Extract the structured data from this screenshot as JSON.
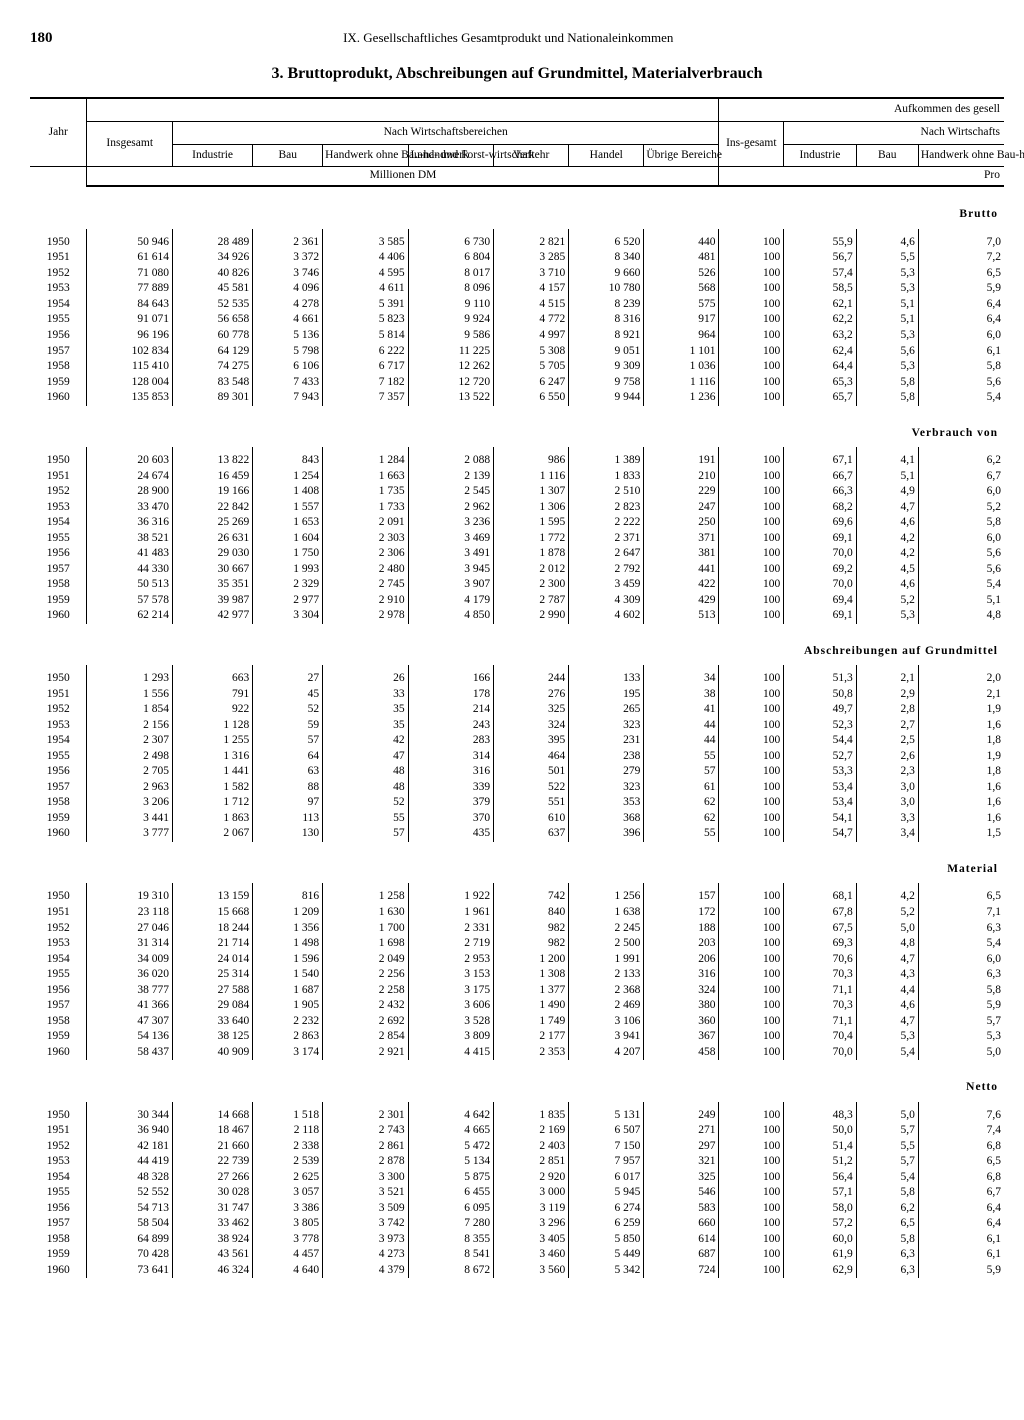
{
  "page_number": "180",
  "chapter": "IX. Gesellschaftliches Gesamtprodukt und Nationaleinkommen",
  "title": "3. Bruttoprodukt, Abschreibungen auf Grundmittel, Materialverbrauch",
  "top_header": "Aufkommen des gesell",
  "mid_header1": "Nach Wirtschaftsbereichen",
  "mid_header2": "Nach Wirtschafts",
  "cols": {
    "jahr": "Jahr",
    "insgesamt": "Insgesamt",
    "industrie": "Industrie",
    "bau": "Bau",
    "handwerk": "Handwerk ohne Bau-handwerk",
    "land": "Land- und Forst-wirtschaft",
    "verkehr": "Verkehr",
    "handel": "Handel",
    "uebrige": "Übrige Bereiche",
    "insgesamt2": "Ins-gesamt",
    "industrie2": "Industrie",
    "bau2": "Bau",
    "handwerk2": "Handwerk ohne Bau-handwerk"
  },
  "unit1": "Millionen DM",
  "unit2": "Pro",
  "sections": [
    {
      "label": "Brutto",
      "rows": [
        [
          "1950",
          "50 946",
          "28 489",
          "2 361",
          "3 585",
          "6 730",
          "2 821",
          "6 520",
          "440",
          "100",
          "55,9",
          "4,6",
          "7,0"
        ],
        [
          "1951",
          "61 614",
          "34 926",
          "3 372",
          "4 406",
          "6 804",
          "3 285",
          "8 340",
          "481",
          "100",
          "56,7",
          "5,5",
          "7,2"
        ],
        [
          "1952",
          "71 080",
          "40 826",
          "3 746",
          "4 595",
          "8 017",
          "3 710",
          "9 660",
          "526",
          "100",
          "57,4",
          "5,3",
          "6,5"
        ],
        [
          "1953",
          "77 889",
          "45 581",
          "4 096",
          "4 611",
          "8 096",
          "4 157",
          "10 780",
          "568",
          "100",
          "58,5",
          "5,3",
          "5,9"
        ],
        [
          "1954",
          "84 643",
          "52 535",
          "4 278",
          "5 391",
          "9 110",
          "4 515",
          "8 239",
          "575",
          "100",
          "62,1",
          "5,1",
          "6,4"
        ],
        [
          "1955",
          "91 071",
          "56 658",
          "4 661",
          "5 823",
          "9 924",
          "4 772",
          "8 316",
          "917",
          "100",
          "62,2",
          "5,1",
          "6,4"
        ],
        [
          "1956",
          "96 196",
          "60 778",
          "5 136",
          "5 814",
          "9 586",
          "4 997",
          "8 921",
          "964",
          "100",
          "63,2",
          "5,3",
          "6,0"
        ],
        [
          "1957",
          "102 834",
          "64 129",
          "5 798",
          "6 222",
          "11 225",
          "5 308",
          "9 051",
          "1 101",
          "100",
          "62,4",
          "5,6",
          "6,1"
        ],
        [
          "1958",
          "115 410",
          "74 275",
          "6 106",
          "6 717",
          "12 262",
          "5 705",
          "9 309",
          "1 036",
          "100",
          "64,4",
          "5,3",
          "5,8"
        ],
        [
          "1959",
          "128 004",
          "83 548",
          "7 433",
          "7 182",
          "12 720",
          "6 247",
          "9 758",
          "1 116",
          "100",
          "65,3",
          "5,8",
          "5,6"
        ],
        [
          "1960",
          "135 853",
          "89 301",
          "7 943",
          "7 357",
          "13 522",
          "6 550",
          "9 944",
          "1 236",
          "100",
          "65,7",
          "5,8",
          "5,4"
        ]
      ]
    },
    {
      "label": "Verbrauch von",
      "rows": [
        [
          "1950",
          "20 603",
          "13 822",
          "843",
          "1 284",
          "2 088",
          "986",
          "1 389",
          "191",
          "100",
          "67,1",
          "4,1",
          "6,2"
        ],
        [
          "1951",
          "24 674",
          "16 459",
          "1 254",
          "1 663",
          "2 139",
          "1 116",
          "1 833",
          "210",
          "100",
          "66,7",
          "5,1",
          "6,7"
        ],
        [
          "1952",
          "28 900",
          "19 166",
          "1 408",
          "1 735",
          "2 545",
          "1 307",
          "2 510",
          "229",
          "100",
          "66,3",
          "4,9",
          "6,0"
        ],
        [
          "1953",
          "33 470",
          "22 842",
          "1 557",
          "1 733",
          "2 962",
          "1 306",
          "2 823",
          "247",
          "100",
          "68,2",
          "4,7",
          "5,2"
        ],
        [
          "1954",
          "36 316",
          "25 269",
          "1 653",
          "2 091",
          "3 236",
          "1 595",
          "2 222",
          "250",
          "100",
          "69,6",
          "4,6",
          "5,8"
        ],
        [
          "1955",
          "38 521",
          "26 631",
          "1 604",
          "2 303",
          "3 469",
          "1 772",
          "2 371",
          "371",
          "100",
          "69,1",
          "4,2",
          "6,0"
        ],
        [
          "1956",
          "41 483",
          "29 030",
          "1 750",
          "2 306",
          "3 491",
          "1 878",
          "2 647",
          "381",
          "100",
          "70,0",
          "4,2",
          "5,6"
        ],
        [
          "1957",
          "44 330",
          "30 667",
          "1 993",
          "2 480",
          "3 945",
          "2 012",
          "2 792",
          "441",
          "100",
          "69,2",
          "4,5",
          "5,6"
        ],
        [
          "1958",
          "50 513",
          "35 351",
          "2 329",
          "2 745",
          "3 907",
          "2 300",
          "3 459",
          "422",
          "100",
          "70,0",
          "4,6",
          "5,4"
        ],
        [
          "1959",
          "57 578",
          "39 987",
          "2 977",
          "2 910",
          "4 179",
          "2 787",
          "4 309",
          "429",
          "100",
          "69,4",
          "5,2",
          "5,1"
        ],
        [
          "1960",
          "62 214",
          "42 977",
          "3 304",
          "2 978",
          "4 850",
          "2 990",
          "4 602",
          "513",
          "100",
          "69,1",
          "5,3",
          "4,8"
        ]
      ]
    },
    {
      "label": "Abschreibungen auf Grundmittel",
      "rows": [
        [
          "1950",
          "1 293",
          "663",
          "27",
          "26",
          "166",
          "244",
          "133",
          "34",
          "100",
          "51,3",
          "2,1",
          "2,0"
        ],
        [
          "1951",
          "1 556",
          "791",
          "45",
          "33",
          "178",
          "276",
          "195",
          "38",
          "100",
          "50,8",
          "2,9",
          "2,1"
        ],
        [
          "1952",
          "1 854",
          "922",
          "52",
          "35",
          "214",
          "325",
          "265",
          "41",
          "100",
          "49,7",
          "2,8",
          "1,9"
        ],
        [
          "1953",
          "2 156",
          "1 128",
          "59",
          "35",
          "243",
          "324",
          "323",
          "44",
          "100",
          "52,3",
          "2,7",
          "1,6"
        ],
        [
          "1954",
          "2 307",
          "1 255",
          "57",
          "42",
          "283",
          "395",
          "231",
          "44",
          "100",
          "54,4",
          "2,5",
          "1,8"
        ],
        [
          "1955",
          "2 498",
          "1 316",
          "64",
          "47",
          "314",
          "464",
          "238",
          "55",
          "100",
          "52,7",
          "2,6",
          "1,9"
        ],
        [
          "1956",
          "2 705",
          "1 441",
          "63",
          "48",
          "316",
          "501",
          "279",
          "57",
          "100",
          "53,3",
          "2,3",
          "1,8"
        ],
        [
          "1957",
          "2 963",
          "1 582",
          "88",
          "48",
          "339",
          "522",
          "323",
          "61",
          "100",
          "53,4",
          "3,0",
          "1,6"
        ],
        [
          "1958",
          "3 206",
          "1 712",
          "97",
          "52",
          "379",
          "551",
          "353",
          "62",
          "100",
          "53,4",
          "3,0",
          "1,6"
        ],
        [
          "1959",
          "3 441",
          "1 863",
          "113",
          "55",
          "370",
          "610",
          "368",
          "62",
          "100",
          "54,1",
          "3,3",
          "1,6"
        ],
        [
          "1960",
          "3 777",
          "2 067",
          "130",
          "57",
          "435",
          "637",
          "396",
          "55",
          "100",
          "54,7",
          "3,4",
          "1,5"
        ]
      ]
    },
    {
      "label": "Material",
      "rows": [
        [
          "1950",
          "19 310",
          "13 159",
          "816",
          "1 258",
          "1 922",
          "742",
          "1 256",
          "157",
          "100",
          "68,1",
          "4,2",
          "6,5"
        ],
        [
          "1951",
          "23 118",
          "15 668",
          "1 209",
          "1 630",
          "1 961",
          "840",
          "1 638",
          "172",
          "100",
          "67,8",
          "5,2",
          "7,1"
        ],
        [
          "1952",
          "27 046",
          "18 244",
          "1 356",
          "1 700",
          "2 331",
          "982",
          "2 245",
          "188",
          "100",
          "67,5",
          "5,0",
          "6,3"
        ],
        [
          "1953",
          "31 314",
          "21 714",
          "1 498",
          "1 698",
          "2 719",
          "982",
          "2 500",
          "203",
          "100",
          "69,3",
          "4,8",
          "5,4"
        ],
        [
          "1954",
          "34 009",
          "24 014",
          "1 596",
          "2 049",
          "2 953",
          "1 200",
          "1 991",
          "206",
          "100",
          "70,6",
          "4,7",
          "6,0"
        ],
        [
          "1955",
          "36 020",
          "25 314",
          "1 540",
          "2 256",
          "3 153",
          "1 308",
          "2 133",
          "316",
          "100",
          "70,3",
          "4,3",
          "6,3"
        ],
        [
          "1956",
          "38 777",
          "27 588",
          "1 687",
          "2 258",
          "3 175",
          "1 377",
          "2 368",
          "324",
          "100",
          "71,1",
          "4,4",
          "5,8"
        ],
        [
          "1957",
          "41 366",
          "29 084",
          "1 905",
          "2 432",
          "3 606",
          "1 490",
          "2 469",
          "380",
          "100",
          "70,3",
          "4,6",
          "5,9"
        ],
        [
          "1958",
          "47 307",
          "33 640",
          "2 232",
          "2 692",
          "3 528",
          "1 749",
          "3 106",
          "360",
          "100",
          "71,1",
          "4,7",
          "5,7"
        ],
        [
          "1959",
          "54 136",
          "38 125",
          "2 863",
          "2 854",
          "3 809",
          "2 177",
          "3 941",
          "367",
          "100",
          "70,4",
          "5,3",
          "5,3"
        ],
        [
          "1960",
          "58 437",
          "40 909",
          "3 174",
          "2 921",
          "4 415",
          "2 353",
          "4 207",
          "458",
          "100",
          "70,0",
          "5,4",
          "5,0"
        ]
      ]
    },
    {
      "label": "Netto",
      "rows": [
        [
          "1950",
          "30 344",
          "14 668",
          "1 518",
          "2 301",
          "4 642",
          "1 835",
          "5 131",
          "249",
          "100",
          "48,3",
          "5,0",
          "7,6"
        ],
        [
          "1951",
          "36 940",
          "18 467",
          "2 118",
          "2 743",
          "4 665",
          "2 169",
          "6 507",
          "271",
          "100",
          "50,0",
          "5,7",
          "7,4"
        ],
        [
          "1952",
          "42 181",
          "21 660",
          "2 338",
          "2 861",
          "5 472",
          "2 403",
          "7 150",
          "297",
          "100",
          "51,4",
          "5,5",
          "6,8"
        ],
        [
          "1953",
          "44 419",
          "22 739",
          "2 539",
          "2 878",
          "5 134",
          "2 851",
          "7 957",
          "321",
          "100",
          "51,2",
          "5,7",
          "6,5"
        ],
        [
          "1954",
          "48 328",
          "27 266",
          "2 625",
          "3 300",
          "5 875",
          "2 920",
          "6 017",
          "325",
          "100",
          "56,4",
          "5,4",
          "6,8"
        ],
        [
          "1955",
          "52 552",
          "30 028",
          "3 057",
          "3 521",
          "6 455",
          "3 000",
          "5 945",
          "546",
          "100",
          "57,1",
          "5,8",
          "6,7"
        ],
        [
          "1956",
          "54 713",
          "31 747",
          "3 386",
          "3 509",
          "6 095",
          "3 119",
          "6 274",
          "583",
          "100",
          "58,0",
          "6,2",
          "6,4"
        ],
        [
          "1957",
          "58 504",
          "33 462",
          "3 805",
          "3 742",
          "7 280",
          "3 296",
          "6 259",
          "660",
          "100",
          "57,2",
          "6,5",
          "6,4"
        ],
        [
          "1958",
          "64 899",
          "38 924",
          "3 778",
          "3 973",
          "8 355",
          "3 405",
          "5 850",
          "614",
          "100",
          "60,0",
          "5,8",
          "6,1"
        ],
        [
          "1959",
          "70 428",
          "43 561",
          "4 457",
          "4 273",
          "8 541",
          "3 460",
          "5 449",
          "687",
          "100",
          "61,9",
          "6,3",
          "6,1"
        ],
        [
          "1960",
          "73 641",
          "46 324",
          "4 640",
          "4 379",
          "8 672",
          "3 560",
          "5 342",
          "724",
          "100",
          "62,9",
          "6,3",
          "5,9"
        ]
      ]
    }
  ]
}
